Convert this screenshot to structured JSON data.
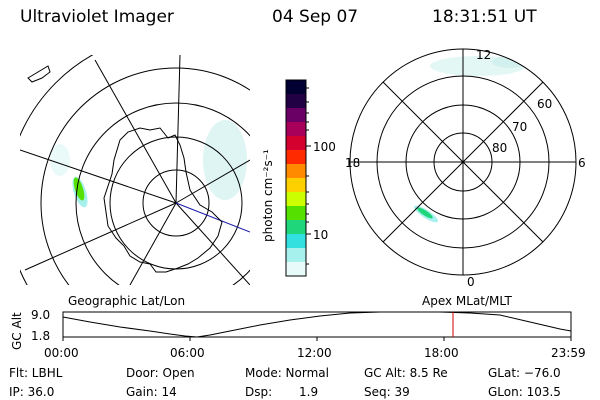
{
  "header": {
    "instrument": "Ultraviolet Imager",
    "date": "04 Sep 07",
    "time": "18:31:51 UT"
  },
  "colorbar": {
    "unit_label": "photon cm⁻²s⁻¹",
    "ticks": [
      "100",
      "10"
    ],
    "colors": [
      "#000033",
      "#220044",
      "#6a0066",
      "#a8005a",
      "#d4002e",
      "#ff2a00",
      "#ff8a00",
      "#ffd000",
      "#ccff00",
      "#55e000",
      "#1fd77a",
      "#33e0e0",
      "#a6f0ee",
      "#e8fbfa"
    ]
  },
  "polar_plot": {
    "mlt_labels": [
      "12",
      "18",
      "6",
      "0"
    ],
    "lat_labels": [
      "60",
      "70",
      "80"
    ]
  },
  "map_titles": {
    "left": "Geographic Lat/Lon",
    "right": "Apex MLat/MLT"
  },
  "altitude_plot": {
    "ylabel": "GC Alt",
    "yticks": [
      "9.0",
      "1.8"
    ],
    "xticks": [
      "00:00",
      "06:00",
      "12:00",
      "18:00",
      "23:59"
    ],
    "marker_color": "#cc0000"
  },
  "footer": {
    "row1": {
      "flt": "Flt: LBHL",
      "door": "Door: Open",
      "mode": "Mode: Normal",
      "gcalt": "GC Alt: 8.5 Re",
      "glat": "GLat: −76.0"
    },
    "row2": {
      "ip": "IP: 36.0",
      "gain": "Gain: 14",
      "dsp_label": "Dsp:",
      "dsp_value": "1.9",
      "seq": "Seq: 39",
      "glon": "GLon: 103.5"
    }
  }
}
